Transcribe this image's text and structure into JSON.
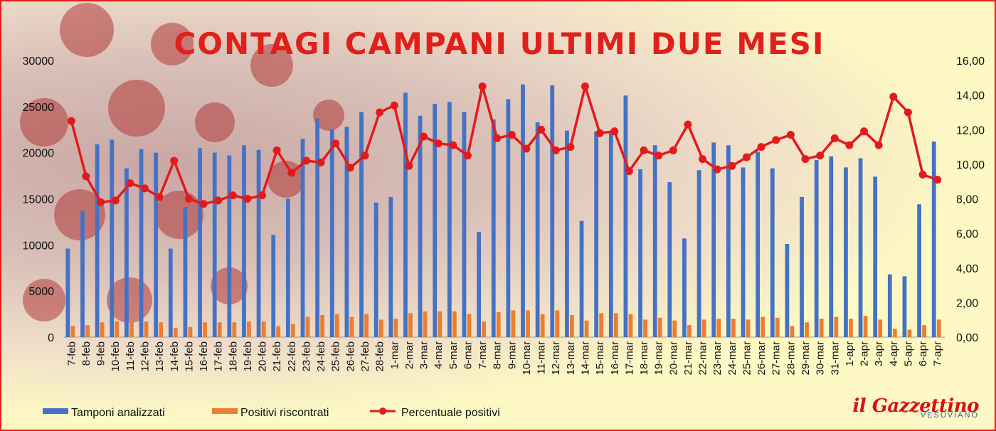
{
  "colors": {
    "background": "#fdf8c4",
    "title": "#e0201a",
    "tamponi": "#4472c4",
    "positivi": "#ed7d31",
    "percentuale": "#e31a1c",
    "axis_text": "#111111"
  },
  "brand": {
    "name": "il Gazzettino",
    "sub": "VESUVIANO"
  },
  "chart_data": {
    "type": "bar",
    "title": "CONTAGI CAMPANI ULTIMI DUE MESI",
    "categories": [
      "7-feb",
      "8-feb",
      "9-feb",
      "10-feb",
      "11-feb",
      "12-feb",
      "13-feb",
      "14-feb",
      "15-feb",
      "16-feb",
      "17-feb",
      "18-feb",
      "19-feb",
      "20-feb",
      "21-feb",
      "22-feb",
      "23-feb",
      "24-feb",
      "25-feb",
      "26-feb",
      "27-feb",
      "28-feb",
      "1-mar",
      "2-mar",
      "3-mar",
      "4-mar",
      "5-mar",
      "6-mar",
      "7-mar",
      "8-mar",
      "9-mar",
      "10-mar",
      "11-mar",
      "12-mar",
      "13-mar",
      "14-mar",
      "15-mar",
      "16-mar",
      "17-mar",
      "18-mar",
      "19-mar",
      "20-mar",
      "21-mar",
      "22-mar",
      "23-mar",
      "24-mar",
      "25-mar",
      "26-mar",
      "27-mar",
      "28-mar",
      "29-mar",
      "30-mar",
      "31-mar",
      "1-apr",
      "2-apr",
      "3-apr",
      "4-apr",
      "5-apr",
      "6-apr",
      "7-apr"
    ],
    "y_left": {
      "min": 0,
      "max": 30000,
      "ticks": [
        "0",
        "5000",
        "10000",
        "15000",
        "20000",
        "25000",
        "30000"
      ]
    },
    "y_right": {
      "min": 0,
      "max": 16,
      "ticks": [
        "0,00",
        "2,00",
        "4,00",
        "6,00",
        "8,00",
        "10,00",
        "12,00",
        "14,00",
        "16,00"
      ]
    },
    "legend_position": "bottom",
    "series": [
      {
        "name": "Tamponi analizzati",
        "type": "bar",
        "axis": "left",
        "values": [
          9600,
          13700,
          20900,
          21400,
          18300,
          20400,
          20000,
          9600,
          14100,
          20500,
          20000,
          19700,
          20800,
          20300,
          11100,
          15000,
          21500,
          23700,
          22500,
          22800,
          24400,
          14600,
          15200,
          26500,
          24000,
          25300,
          25500,
          24400,
          11400,
          23600,
          25800,
          27400,
          23300,
          27300,
          22400,
          12600,
          22300,
          22200,
          26200,
          18200,
          20800,
          16800,
          10700,
          18100,
          21100,
          20800,
          18400,
          20100,
          18300,
          10100,
          15200,
          19200,
          19600,
          18400,
          19400,
          17400,
          6800,
          6600,
          14400,
          21200
        ]
      },
      {
        "name": "Positivi riscontrati",
        "type": "bar",
        "axis": "left",
        "values": [
          1200,
          1300,
          1600,
          1700,
          1600,
          1700,
          1600,
          1000,
          1100,
          1600,
          1600,
          1600,
          1700,
          1700,
          1200,
          1400,
          2200,
          2400,
          2500,
          2200,
          2500,
          1900,
          2000,
          2600,
          2800,
          2800,
          2800,
          2500,
          1700,
          2700,
          2900,
          2900,
          2500,
          2900,
          2400,
          1800,
          2600,
          2600,
          2500,
          1900,
          2100,
          1800,
          1300,
          1900,
          2000,
          2000,
          1900,
          2200,
          2100,
          1200,
          1600,
          2000,
          2200,
          2000,
          2300,
          1900,
          900,
          800,
          1300,
          1900
        ]
      },
      {
        "name": "Percentuale positivi",
        "type": "line",
        "axis": "right",
        "values": [
          12.5,
          9.3,
          7.8,
          7.9,
          8.9,
          8.6,
          8.1,
          10.2,
          8.0,
          7.7,
          7.9,
          8.2,
          8.0,
          8.2,
          10.8,
          9.5,
          10.2,
          10.1,
          11.2,
          9.8,
          10.5,
          13.0,
          13.4,
          9.9,
          11.6,
          11.2,
          11.1,
          10.5,
          14.5,
          11.5,
          11.7,
          10.9,
          12.0,
          10.8,
          11.0,
          14.5,
          11.8,
          11.9,
          9.6,
          10.8,
          10.5,
          10.8,
          12.3,
          10.3,
          9.7,
          9.9,
          10.4,
          11.0,
          11.4,
          11.7,
          10.3,
          10.5,
          11.5,
          11.1,
          11.9,
          11.1,
          13.9,
          13.0,
          9.4,
          9.1
        ]
      }
    ]
  }
}
